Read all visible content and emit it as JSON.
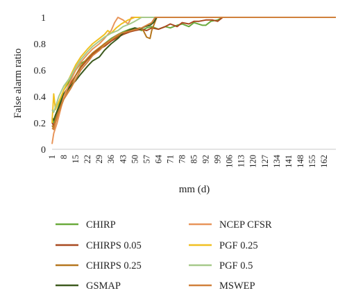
{
  "chart_data": {
    "type": "line",
    "title": "",
    "xlabel": "mm (d)",
    "ylabel": "False alarm ratio",
    "xlim": [
      1,
      169
    ],
    "ylim": [
      0,
      1
    ],
    "y_ticks": [
      0,
      0.2,
      0.4,
      0.6,
      0.8,
      1
    ],
    "y_tick_labels": [
      "0",
      "0.2",
      "0.4",
      "0.6",
      "0.8",
      "1"
    ],
    "x_ticks": [
      1,
      8,
      15,
      22,
      29,
      36,
      43,
      50,
      57,
      64,
      71,
      78,
      85,
      92,
      99,
      106,
      113,
      120,
      127,
      134,
      141,
      148,
      155,
      162
    ],
    "x_tick_labels": [
      "1",
      "8",
      "15",
      "22",
      "29",
      "36",
      "43",
      "50",
      "57",
      "64",
      "71",
      "78",
      "85",
      "92",
      "99",
      "106",
      "113",
      "120",
      "127",
      "134",
      "141",
      "148",
      "155",
      "162"
    ],
    "grid": false,
    "legend_position": "bottom",
    "series": [
      {
        "name": "CHIRP",
        "color": "#6aaa3c",
        "x": [
          1,
          2,
          3,
          5,
          8,
          12,
          15,
          18,
          22,
          25,
          29,
          32,
          36,
          40,
          43,
          47,
          50,
          54,
          57,
          60,
          64,
          68,
          71,
          75,
          78,
          82,
          85,
          90,
          92,
          95,
          99,
          102,
          169
        ],
        "y": [
          0.23,
          0.2,
          0.25,
          0.33,
          0.45,
          0.53,
          0.6,
          0.65,
          0.68,
          0.72,
          0.76,
          0.8,
          0.84,
          0.87,
          0.89,
          0.91,
          0.92,
          0.9,
          0.92,
          0.93,
          0.91,
          0.93,
          0.92,
          0.94,
          0.95,
          0.93,
          0.96,
          0.94,
          0.94,
          0.97,
          0.98,
          1,
          1
        ]
      },
      {
        "name": "CHIRPS 0.05",
        "color": "#a8491f",
        "x": [
          1,
          2,
          3,
          5,
          8,
          12,
          15,
          18,
          22,
          25,
          29,
          32,
          36,
          40,
          43,
          47,
          50,
          54,
          57,
          60,
          64,
          68,
          71,
          75,
          78,
          82,
          85,
          88,
          92,
          96,
          99,
          102,
          169
        ],
        "y": [
          0.2,
          0.18,
          0.22,
          0.3,
          0.42,
          0.5,
          0.56,
          0.62,
          0.68,
          0.72,
          0.76,
          0.78,
          0.82,
          0.85,
          0.87,
          0.89,
          0.9,
          0.91,
          0.9,
          0.92,
          0.91,
          0.93,
          0.95,
          0.93,
          0.96,
          0.95,
          0.97,
          0.97,
          0.98,
          0.98,
          0.97,
          1,
          1
        ]
      },
      {
        "name": "CHIRPS 0.25",
        "color": "#b5761e",
        "x": [
          1,
          2,
          3,
          5,
          8,
          12,
          15,
          18,
          22,
          25,
          29,
          32,
          36,
          40,
          43,
          47,
          50,
          53,
          55,
          57,
          59,
          60,
          63,
          169
        ],
        "y": [
          0.18,
          0.16,
          0.22,
          0.3,
          0.4,
          0.48,
          0.56,
          0.63,
          0.69,
          0.73,
          0.77,
          0.8,
          0.83,
          0.86,
          0.88,
          0.9,
          0.91,
          0.92,
          0.9,
          0.85,
          0.84,
          0.9,
          1,
          1
        ]
      },
      {
        "name": "GSMAP",
        "color": "#3c5a1e",
        "x": [
          1,
          2,
          3,
          5,
          8,
          12,
          15,
          18,
          22,
          25,
          29,
          32,
          36,
          40,
          43,
          46,
          50,
          53,
          56,
          59,
          61,
          63,
          169
        ],
        "y": [
          0.24,
          0.22,
          0.26,
          0.32,
          0.42,
          0.48,
          0.52,
          0.57,
          0.63,
          0.67,
          0.7,
          0.75,
          0.8,
          0.84,
          0.88,
          0.9,
          0.92,
          0.91,
          0.93,
          0.94,
          0.96,
          1,
          1
        ]
      },
      {
        "name": "NCEP CFSR",
        "color": "#e8955a",
        "x": [
          1,
          2,
          4,
          6,
          8,
          12,
          15,
          18,
          22,
          25,
          29,
          32,
          36,
          38,
          40,
          43,
          46,
          48,
          169
        ],
        "y": [
          0.04,
          0.12,
          0.2,
          0.3,
          0.4,
          0.52,
          0.6,
          0.66,
          0.72,
          0.76,
          0.8,
          0.84,
          0.9,
          0.96,
          1,
          0.98,
          0.95,
          1,
          1
        ]
      },
      {
        "name": "PGF 0.25",
        "color": "#f0c020",
        "x": [
          1,
          2,
          3,
          5,
          8,
          12,
          15,
          18,
          22,
          25,
          29,
          32,
          34,
          36,
          39,
          42,
          46,
          50,
          169
        ],
        "y": [
          0.2,
          0.42,
          0.3,
          0.36,
          0.45,
          0.56,
          0.64,
          0.7,
          0.76,
          0.8,
          0.84,
          0.87,
          0.9,
          0.88,
          0.92,
          0.95,
          0.98,
          1,
          1
        ]
      },
      {
        "name": "PGF 0.5",
        "color": "#a6c98a",
        "x": [
          1,
          2,
          3,
          5,
          8,
          12,
          15,
          18,
          22,
          25,
          29,
          32,
          36,
          40,
          43,
          47,
          50,
          54,
          169
        ],
        "y": [
          0.3,
          0.28,
          0.32,
          0.4,
          0.48,
          0.55,
          0.62,
          0.68,
          0.74,
          0.78,
          0.82,
          0.85,
          0.88,
          0.9,
          0.93,
          0.95,
          0.97,
          1,
          1
        ]
      },
      {
        "name": "MSWEP",
        "color": "#d0803a",
        "x": [
          1,
          2,
          3,
          5,
          8,
          12,
          15,
          18,
          22,
          25,
          29,
          32,
          36,
          39,
          42,
          45,
          48,
          51,
          54,
          57,
          60,
          62,
          169
        ],
        "y": [
          0.16,
          0.15,
          0.2,
          0.28,
          0.38,
          0.46,
          0.53,
          0.6,
          0.66,
          0.71,
          0.75,
          0.79,
          0.83,
          0.86,
          0.88,
          0.89,
          0.9,
          0.91,
          0.92,
          0.94,
          0.96,
          1,
          1
        ]
      }
    ]
  }
}
